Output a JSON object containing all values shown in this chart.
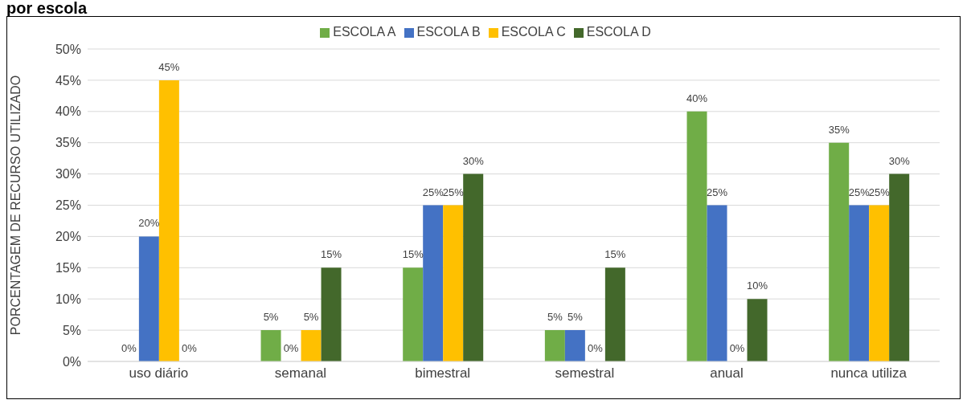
{
  "chart_data": {
    "type": "bar",
    "title": "por escola",
    "ylabel": "PORCENTAGEM DE RECURSO UTILIZADO",
    "categories": [
      "uso diário",
      "semanal",
      "bimestral",
      "semestral",
      "anual",
      "nunca utiliza"
    ],
    "series": [
      {
        "name": "ESCOLA A",
        "color": "#70ad47",
        "values": [
          0,
          5,
          15,
          5,
          40,
          35
        ],
        "value_labels": [
          "0%",
          "5%",
          "15%",
          "5%",
          "40%",
          "35%"
        ]
      },
      {
        "name": "ESCOLA B",
        "color": "#4472c4",
        "values": [
          20,
          0,
          25,
          5,
          25,
          25
        ],
        "value_labels": [
          "20%",
          "0%",
          "25%",
          "5%",
          "25%",
          "25%"
        ]
      },
      {
        "name": "ESCOLA C",
        "color": "#ffc000",
        "values": [
          45,
          5,
          25,
          0,
          0,
          25
        ],
        "value_labels": [
          "45%",
          "5%",
          "25%",
          "0%",
          "0%",
          "25%"
        ]
      },
      {
        "name": "ESCOLA D",
        "color": "#43682b",
        "values": [
          0,
          15,
          30,
          15,
          10,
          30
        ],
        "value_labels": [
          "0%",
          "15%",
          "30%",
          "15%",
          "10%",
          "30%"
        ]
      }
    ],
    "ylim": [
      0,
      50
    ],
    "yticks": [
      {
        "value": 0,
        "label": "0%"
      },
      {
        "value": 5,
        "label": "5%"
      },
      {
        "value": 10,
        "label": "10%"
      },
      {
        "value": 15,
        "label": "15%"
      },
      {
        "value": 20,
        "label": "20%"
      },
      {
        "value": 25,
        "label": "25%"
      },
      {
        "value": 30,
        "label": "30%"
      },
      {
        "value": 35,
        "label": "35%"
      },
      {
        "value": 40,
        "label": "40%"
      },
      {
        "value": 45,
        "label": "45%"
      },
      {
        "value": 50,
        "label": "50%"
      }
    ],
    "grid": "y",
    "legend": "top"
  }
}
